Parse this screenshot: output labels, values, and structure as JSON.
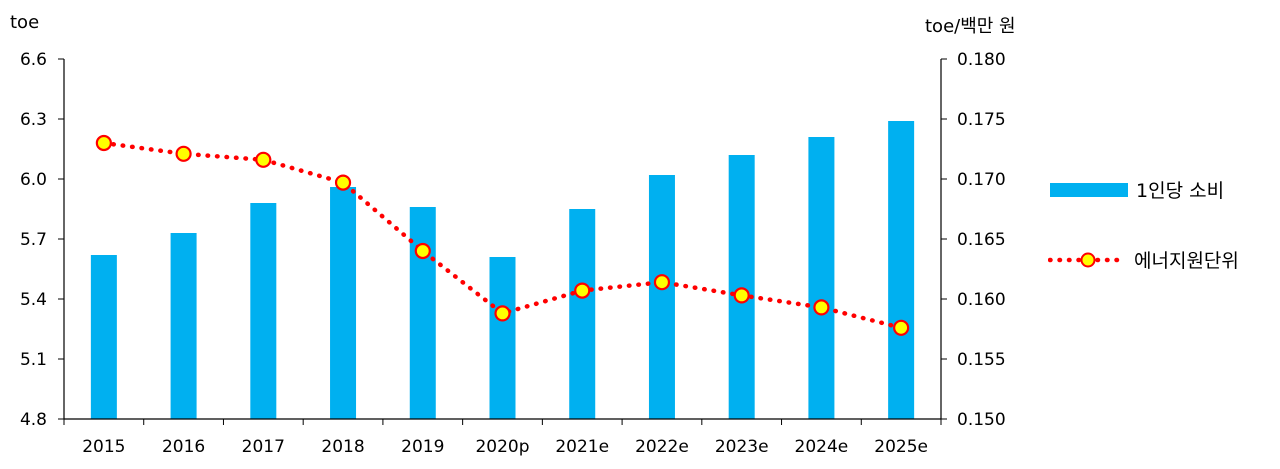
{
  "chart_data": {
    "type": "bar+line",
    "categories": [
      "2015",
      "2016",
      "2017",
      "2018",
      "2019",
      "2020p",
      "2021e",
      "2022e",
      "2023e",
      "2024e",
      "2025e"
    ],
    "series": [
      {
        "name": "1인당 소비",
        "type": "bar",
        "axis": "left",
        "values": [
          5.62,
          5.73,
          5.88,
          5.96,
          5.86,
          5.61,
          5.85,
          6.02,
          6.12,
          6.21,
          6.29
        ]
      },
      {
        "name": "에너지원단위",
        "type": "line",
        "axis": "right",
        "values": [
          0.173,
          0.1721,
          0.1716,
          0.1697,
          0.164,
          0.1588,
          0.1607,
          0.1614,
          0.1603,
          0.1593,
          0.1576
        ]
      }
    ],
    "ylabel_left": "toe",
    "ylabel_right": "toe/백만 원",
    "ylim_left": [
      4.8,
      6.6
    ],
    "yticks_left": [
      "4.8",
      "5.1",
      "5.4",
      "5.7",
      "6.0",
      "6.3",
      "6.6"
    ],
    "ylim_right": [
      0.15,
      0.18
    ],
    "yticks_right": [
      "0.150",
      "0.155",
      "0.160",
      "0.165",
      "0.170",
      "0.175",
      "0.180"
    ],
    "grid": false,
    "legend_position": "right",
    "colors": {
      "bar": "#00b0f0",
      "line": "#ff0000",
      "marker_fill": "#ffff00",
      "marker_edge": "#ff0000"
    }
  }
}
